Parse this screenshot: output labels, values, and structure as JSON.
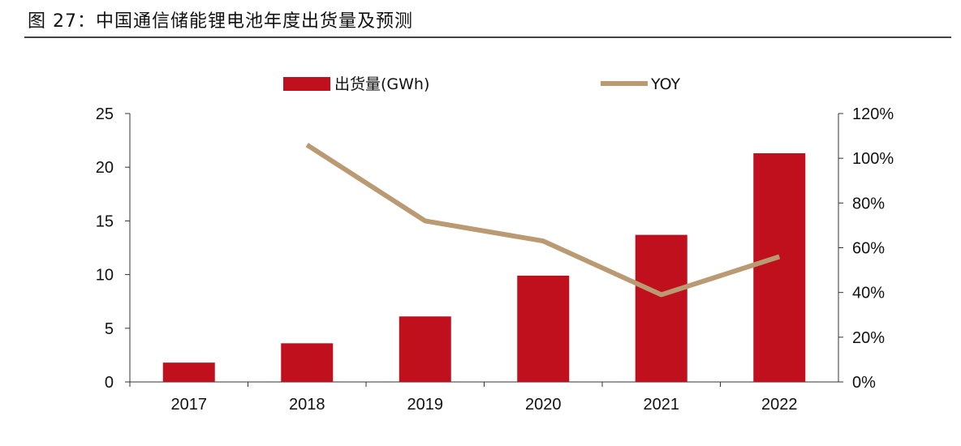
{
  "title": "图 27：中国通信储能锂电池年度出货量及预测",
  "chart_data": {
    "type": "bar+line",
    "categories": [
      "2017",
      "2018",
      "2019",
      "2020",
      "2021",
      "2022"
    ],
    "series": [
      {
        "name": "出货量(GWh)",
        "type": "bar",
        "axis": "left",
        "color": "#C0101E",
        "values": [
          1.8,
          3.6,
          6.1,
          9.9,
          13.7,
          21.3
        ]
      },
      {
        "name": "YOY",
        "type": "line",
        "axis": "right",
        "color": "#B99A73",
        "values": [
          null,
          1.06,
          0.72,
          0.63,
          0.39,
          0.56
        ]
      }
    ],
    "left_axis": {
      "ylim": [
        0,
        25
      ],
      "ticks": [
        "0",
        "5",
        "10",
        "15",
        "20",
        "25"
      ]
    },
    "right_axis": {
      "ylim": [
        0,
        1.2
      ],
      "ticks": [
        "0%",
        "20%",
        "40%",
        "60%",
        "80%",
        "100%",
        "120%"
      ]
    },
    "legend": "top",
    "grid": false
  }
}
